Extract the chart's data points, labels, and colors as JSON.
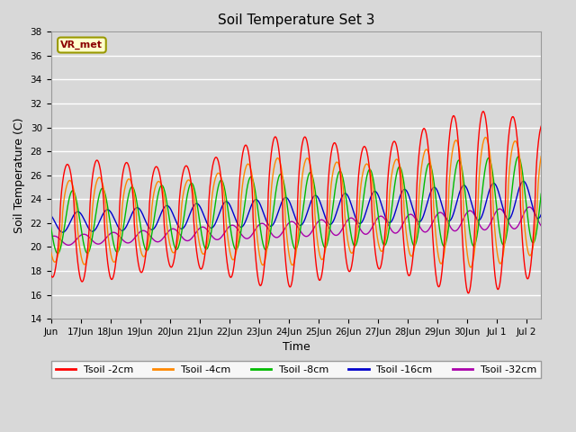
{
  "title": "Soil Temperature Set 3",
  "xlabel": "Time",
  "ylabel": "Soil Temperature (C)",
  "ylim": [
    14,
    38
  ],
  "yticks": [
    14,
    16,
    18,
    20,
    22,
    24,
    26,
    28,
    30,
    32,
    34,
    36,
    38
  ],
  "background_color": "#d8d8d8",
  "plot_bg_color": "#d8d8d8",
  "grid_color": "#ffffff",
  "colors": {
    "2cm": "#ff0000",
    "4cm": "#ff8800",
    "8cm": "#00bb00",
    "16cm": "#0000cc",
    "32cm": "#aa00aa"
  },
  "legend_labels": [
    "Tsoil -2cm",
    "Tsoil -4cm",
    "Tsoil -8cm",
    "Tsoil -16cm",
    "Tsoil -32cm"
  ],
  "watermark": "VR_met",
  "num_days": 16.5,
  "num_points": 1000
}
